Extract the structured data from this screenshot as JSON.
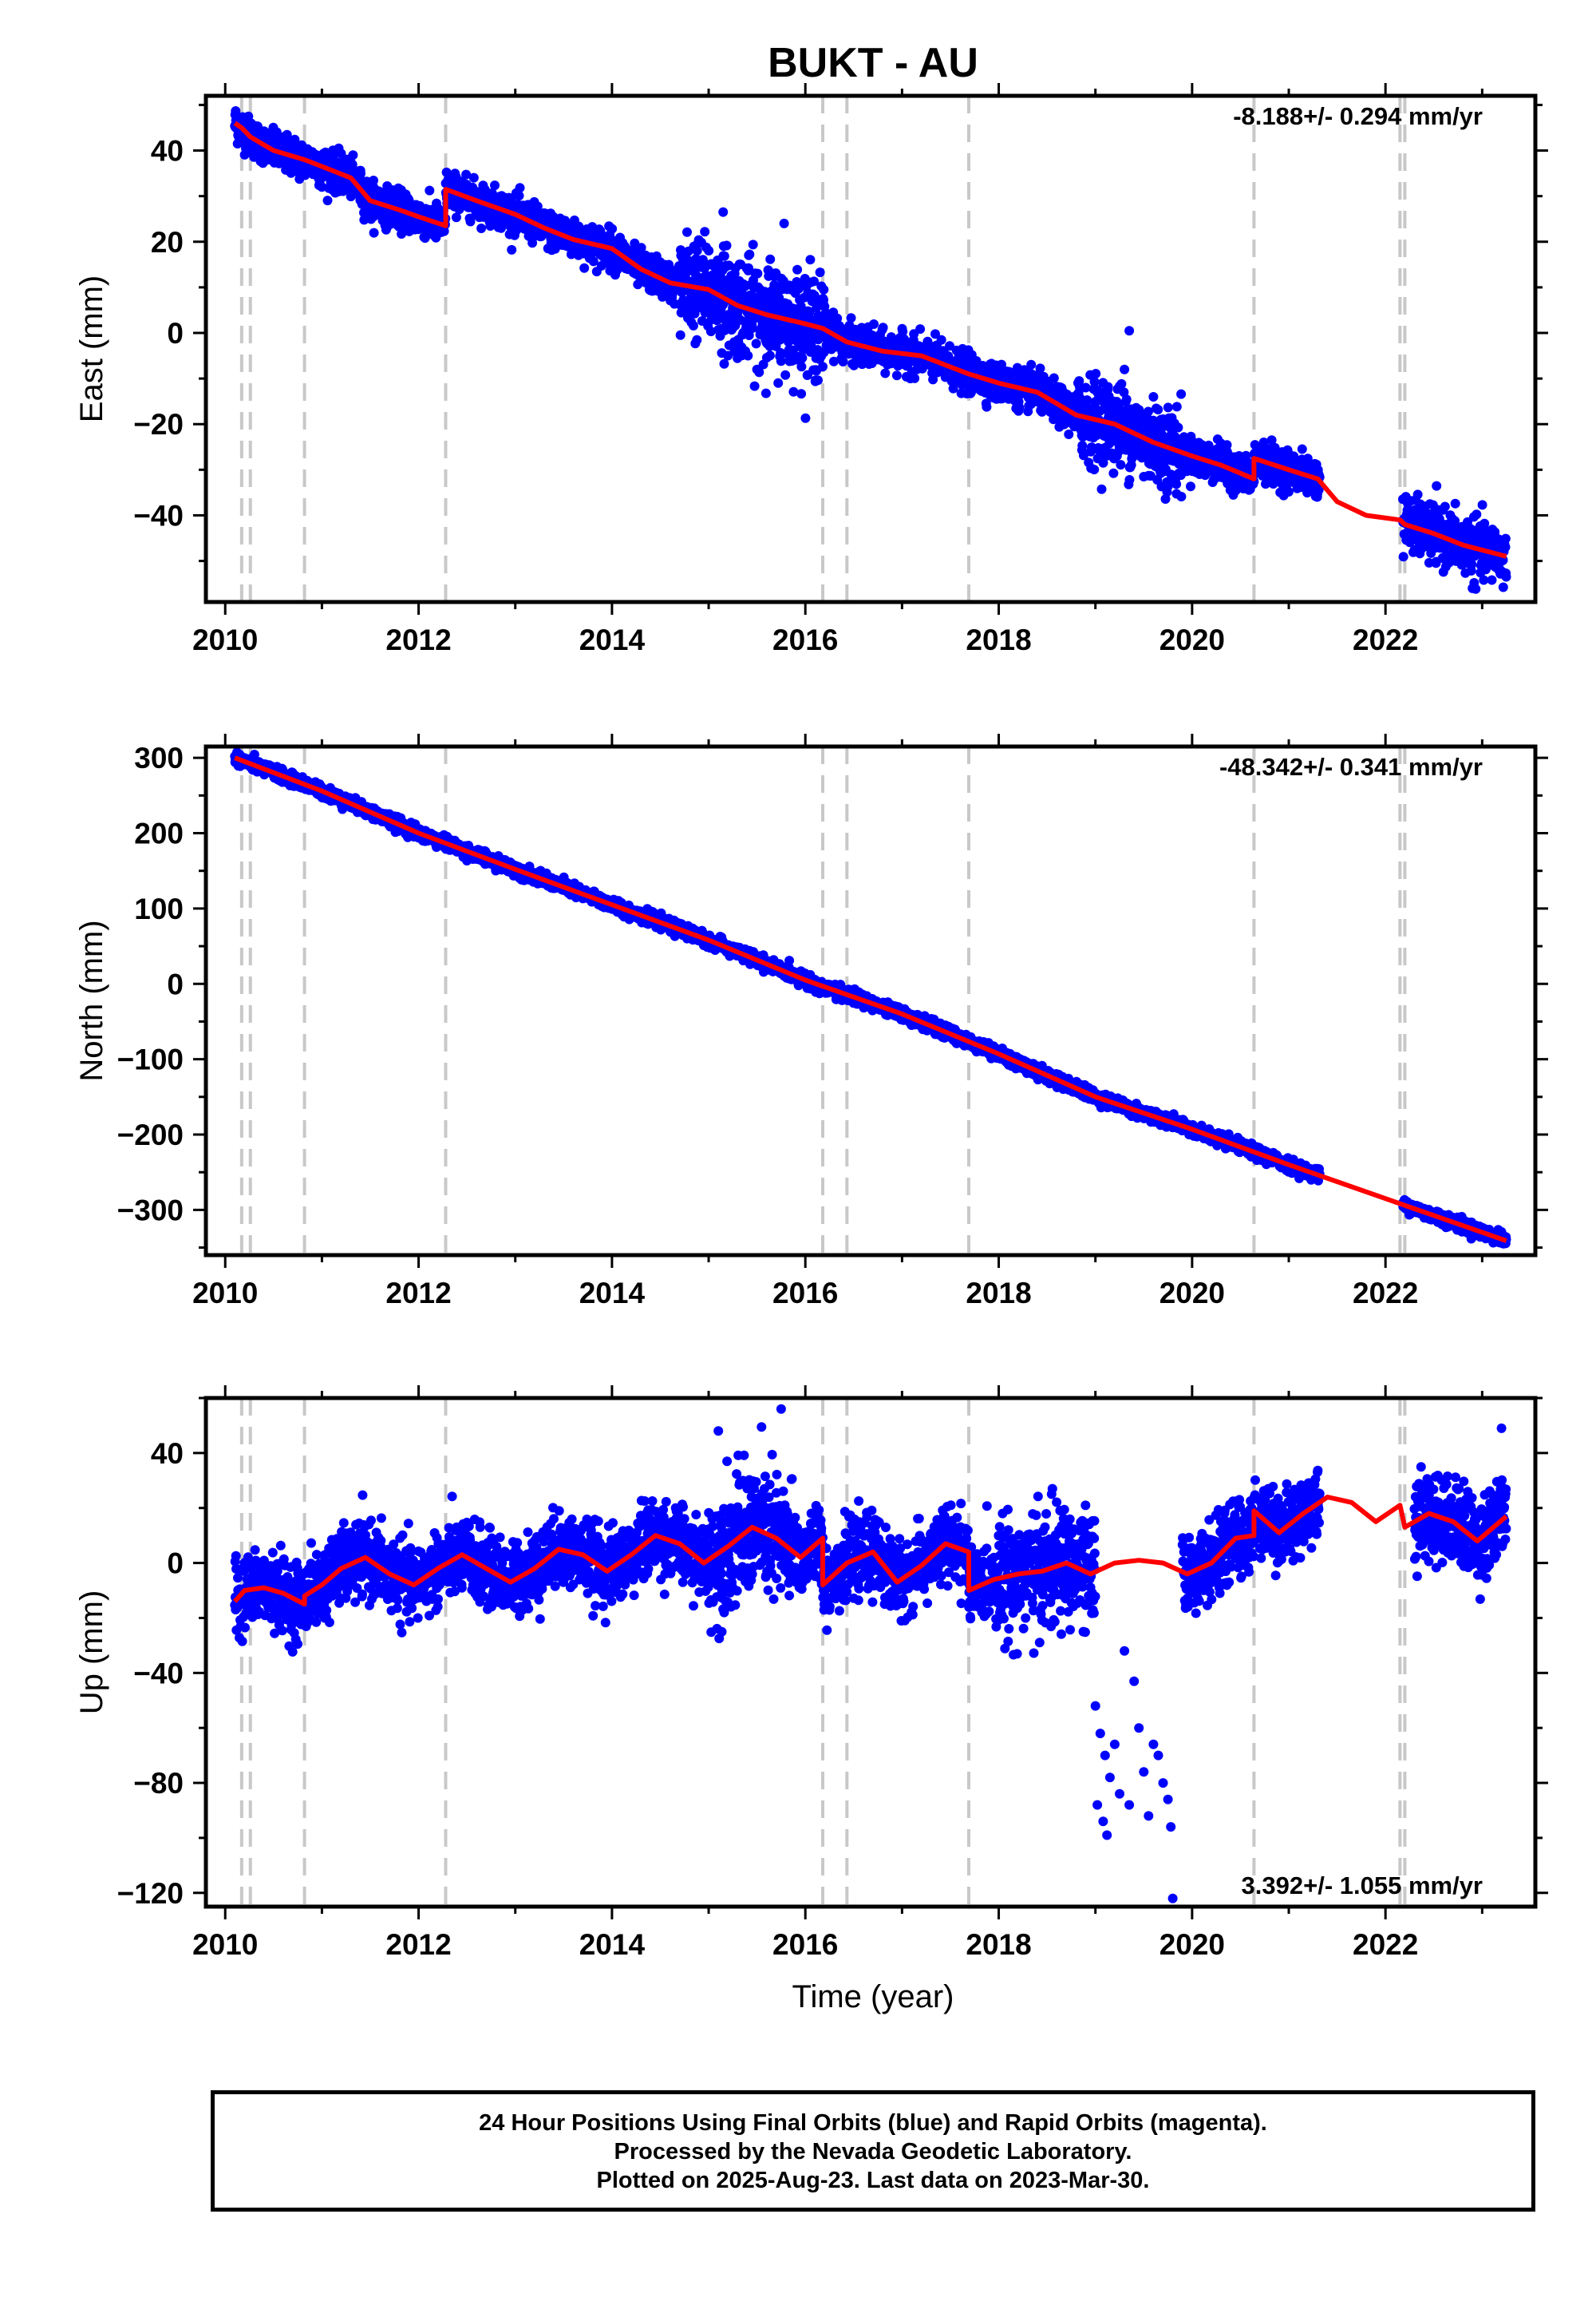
{
  "title": "BUKT - AU",
  "xlabel": "Time (year)",
  "caption": [
    "24 Hour Positions Using Final Orbits (blue) and Rapid Orbits (magenta).",
    "Processed by the Nevada Geodetic Laboratory.",
    "Plotted on 2025-Aug-23. Last data on 2023-Mar-30."
  ],
  "colors": {
    "data": "#0000ff",
    "model": "#ff0000",
    "steps": "#c8c8c8",
    "axes": "#000000"
  },
  "chart_data": [
    {
      "type": "scatter",
      "ylabel": "East (mm)",
      "rate_label": "-8.188+/- 0.294 mm/yr",
      "xlim": [
        2009.8,
        2023.55
      ],
      "ylim": [
        -59,
        52
      ],
      "xticks": [
        2010,
        2012,
        2014,
        2016,
        2018,
        2020,
        2022
      ],
      "yticks": [
        40,
        20,
        0,
        -20,
        -40
      ],
      "steps": [
        2010.17,
        2010.26,
        2010.82,
        2012.28,
        2016.18,
        2016.43,
        2017.69,
        2020.64,
        2022.15,
        2022.2
      ],
      "model": {
        "x": [
          2010.1,
          2010.17,
          2010.26,
          2010.5,
          2010.82,
          2011.0,
          2011.3,
          2011.5,
          2011.8,
          2012.0,
          2012.28,
          2012.28,
          2012.6,
          2013.0,
          2013.3,
          2013.6,
          2014.0,
          2014.3,
          2014.6,
          2015.0,
          2015.3,
          2015.6,
          2016.0,
          2016.18,
          2016.43,
          2016.8,
          2017.2,
          2017.69,
          2018.0,
          2018.4,
          2018.8,
          2019.2,
          2019.6,
          2020.0,
          2020.3,
          2020.64,
          2020.64,
          2021.0,
          2021.3,
          2021.5,
          2021.8,
          2022.15,
          2022.2,
          2022.5,
          2022.8,
          2023.25
        ],
        "y": [
          46,
          45,
          43,
          40,
          38,
          36.5,
          34,
          29,
          27,
          25.5,
          23.5,
          31.5,
          29,
          26,
          23,
          20.5,
          18.5,
          14,
          11,
          9.5,
          6,
          4,
          2,
          1,
          -2,
          -4,
          -5,
          -9,
          -11,
          -13,
          -18,
          -20,
          -24,
          -27,
          -29,
          -32,
          -27.5,
          -30,
          -32,
          -37,
          -40,
          -41,
          -42,
          -44,
          -46.5,
          -49
        ]
      },
      "scatter": {
        "segments": [
          {
            "x0": 2010.1,
            "x1": 2021.32,
            "spread": 2.0
          },
          {
            "x0": 2022.18,
            "x1": 2023.25,
            "spread": 3.0
          }
        ],
        "noisy_ranges": [
          {
            "x0": 2014.7,
            "x1": 2016.2,
            "extra": 3.5
          },
          {
            "x0": 2018.8,
            "x1": 2019.9,
            "extra": 2.5
          }
        ],
        "outliers": [
          {
            "x": 2015.15,
            "y": 26.5
          },
          {
            "x": 2015.78,
            "y": 24
          },
          {
            "x": 2019.35,
            "y": 0.5
          },
          {
            "x": 2019.6,
            "y": -14
          },
          {
            "x": 2019.3,
            "y": -8
          },
          {
            "x": 2019.1,
            "y": -16
          },
          {
            "x": 2018.9,
            "y": -12
          },
          {
            "x": 2015.5,
            "y": -8
          },
          {
            "x": 2022.9,
            "y": -56
          },
          {
            "x": 2011.0,
            "y": 32
          }
        ]
      }
    },
    {
      "type": "scatter",
      "ylabel": "North (mm)",
      "rate_label": "-48.342+/- 0.341 mm/yr",
      "xlim": [
        2009.8,
        2023.55
      ],
      "ylim": [
        -360,
        315
      ],
      "xticks": [
        2010,
        2012,
        2014,
        2016,
        2018,
        2020,
        2022
      ],
      "yticks": [
        300,
        200,
        100,
        0,
        -100,
        -200,
        -300
      ],
      "steps": [
        2010.17,
        2010.26,
        2010.82,
        2012.28,
        2016.18,
        2016.43,
        2017.69,
        2020.64,
        2022.15,
        2022.2
      ],
      "model": {
        "x": [
          2010.1,
          2011.0,
          2012.0,
          2013.0,
          2014.0,
          2015.0,
          2016.0,
          2017.0,
          2018.0,
          2019.0,
          2020.0,
          2021.0,
          2022.0,
          2023.25
        ],
        "y": [
          300,
          256,
          200,
          152,
          105,
          58,
          5,
          -40,
          -93,
          -150,
          -193,
          -240,
          -285,
          -341
        ]
      },
      "scatter": {
        "segments": [
          {
            "x0": 2010.1,
            "x1": 2021.32,
            "spread": 4.0
          },
          {
            "x0": 2022.18,
            "x1": 2023.25,
            "spread": 4.0
          }
        ],
        "noisy_ranges": [],
        "outliers": []
      }
    },
    {
      "type": "scatter",
      "ylabel": "Up (mm)",
      "rate_label": "3.392+/- 1.055 mm/yr",
      "xlim": [
        2009.8,
        2023.55
      ],
      "ylim": [
        -125,
        60
      ],
      "xticks": [
        2010,
        2012,
        2014,
        2016,
        2018,
        2020,
        2022
      ],
      "yticks": [
        40,
        0,
        -40,
        -80,
        -120
      ],
      "steps": [
        2010.17,
        2010.26,
        2010.82,
        2012.28,
        2016.18,
        2016.43,
        2017.69,
        2020.64,
        2022.15,
        2022.2
      ],
      "model": {
        "x": [
          2010.1,
          2010.2,
          2010.4,
          2010.6,
          2010.82,
          2010.82,
          2011.0,
          2011.2,
          2011.45,
          2011.7,
          2011.95,
          2012.2,
          2012.45,
          2012.7,
          2012.95,
          2013.2,
          2013.45,
          2013.7,
          2013.95,
          2014.2,
          2014.45,
          2014.7,
          2014.95,
          2015.2,
          2015.45,
          2015.7,
          2015.95,
          2016.18,
          2016.18,
          2016.43,
          2016.7,
          2016.95,
          2017.2,
          2017.45,
          2017.69,
          2017.69,
          2017.95,
          2018.2,
          2018.45,
          2018.7,
          2018.95,
          2019.2,
          2019.45,
          2019.7,
          2019.95,
          2020.2,
          2020.45,
          2020.64,
          2020.64,
          2020.9,
          2021.15,
          2021.4,
          2021.65,
          2021.9,
          2022.15,
          2022.2,
          2022.45,
          2022.7,
          2022.95,
          2023.25
        ],
        "y": [
          -14,
          -10,
          -9,
          -11,
          -15,
          -12,
          -8,
          -2,
          2,
          -4,
          -8,
          -2,
          3,
          -2,
          -7,
          -2,
          5,
          3,
          -3,
          3,
          10,
          7,
          0,
          6,
          13,
          9,
          2,
          9,
          -8,
          0,
          4,
          -7,
          -1,
          7,
          4,
          -10,
          -6,
          -4,
          -3,
          0,
          -4,
          0,
          1,
          0,
          -4,
          0,
          9,
          10,
          19,
          11,
          18,
          24,
          22,
          15,
          21,
          13,
          18,
          15,
          8,
          17
        ]
      },
      "scatter": {
        "segments": [
          {
            "x0": 2010.1,
            "x1": 2019.0,
            "spread": 6.5
          },
          {
            "x0": 2019.9,
            "x1": 2021.32,
            "spread": 6.5
          },
          {
            "x0": 2022.3,
            "x1": 2023.25,
            "spread": 7.5
          }
        ],
        "noisy_ranges": [
          {
            "x0": 2015.0,
            "x1": 2015.9,
            "extra": 5
          },
          {
            "x0": 2018.0,
            "x1": 2019.0,
            "extra": 4
          }
        ],
        "outliers": [
          {
            "x": 2015.1,
            "y": 48
          },
          {
            "x": 2015.75,
            "y": 56
          },
          {
            "x": 2023.2,
            "y": 49
          },
          {
            "x": 2019.0,
            "y": -52
          },
          {
            "x": 2019.05,
            "y": -62
          },
          {
            "x": 2019.1,
            "y": -70
          },
          {
            "x": 2019.15,
            "y": -78
          },
          {
            "x": 2019.2,
            "y": -66
          },
          {
            "x": 2019.25,
            "y": -84
          },
          {
            "x": 2019.02,
            "y": -88
          },
          {
            "x": 2019.08,
            "y": -94
          },
          {
            "x": 2019.12,
            "y": -99
          },
          {
            "x": 2019.3,
            "y": -32
          },
          {
            "x": 2019.4,
            "y": -43
          },
          {
            "x": 2019.45,
            "y": -60
          },
          {
            "x": 2019.5,
            "y": -76
          },
          {
            "x": 2019.55,
            "y": -92
          },
          {
            "x": 2019.65,
            "y": -70
          },
          {
            "x": 2019.7,
            "y": -80
          },
          {
            "x": 2019.75,
            "y": -86
          },
          {
            "x": 2019.78,
            "y": -96
          },
          {
            "x": 2019.8,
            "y": -122
          },
          {
            "x": 2019.35,
            "y": -88
          },
          {
            "x": 2019.6,
            "y": -66
          }
        ]
      }
    }
  ]
}
